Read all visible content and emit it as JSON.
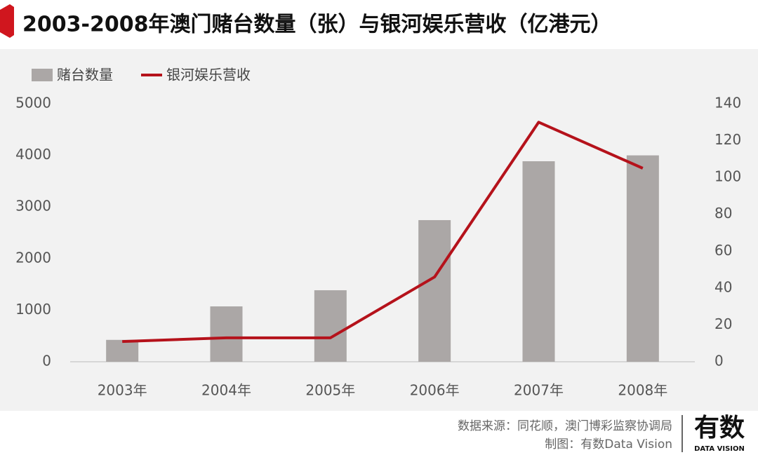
{
  "chart_data": {
    "type": "bar-line",
    "title": "2003-2008年澳门赌台数量（张）与银河娱乐营收（亿港元）",
    "categories": [
      "2003年",
      "2004年",
      "2005年",
      "2006年",
      "2007年",
      "2008年"
    ],
    "series": [
      {
        "name": "赌台数量",
        "type": "bar",
        "color": "#aba7a6",
        "values": [
          424,
          1073,
          1386,
          2745,
          3886,
          4000
        ]
      },
      {
        "name": "银河娱乐营收",
        "type": "line",
        "axis": "y2",
        "color": "#b5121b",
        "values": [
          11,
          13,
          13,
          46,
          130,
          105
        ]
      }
    ],
    "ylim": [
      0,
      5000
    ],
    "yticks": [
      0,
      1000,
      2000,
      3000,
      4000,
      5000
    ],
    "y2lim": [
      0,
      140
    ],
    "y2ticks": [
      0,
      20,
      40,
      60,
      80,
      100,
      120,
      140
    ],
    "legend": "top-left",
    "source": "数据来源：同花顺，澳门博彩监察协调局",
    "credit": "制图：有数Data Vision",
    "logo": "有数",
    "logo_sub": "DATA VISION"
  }
}
